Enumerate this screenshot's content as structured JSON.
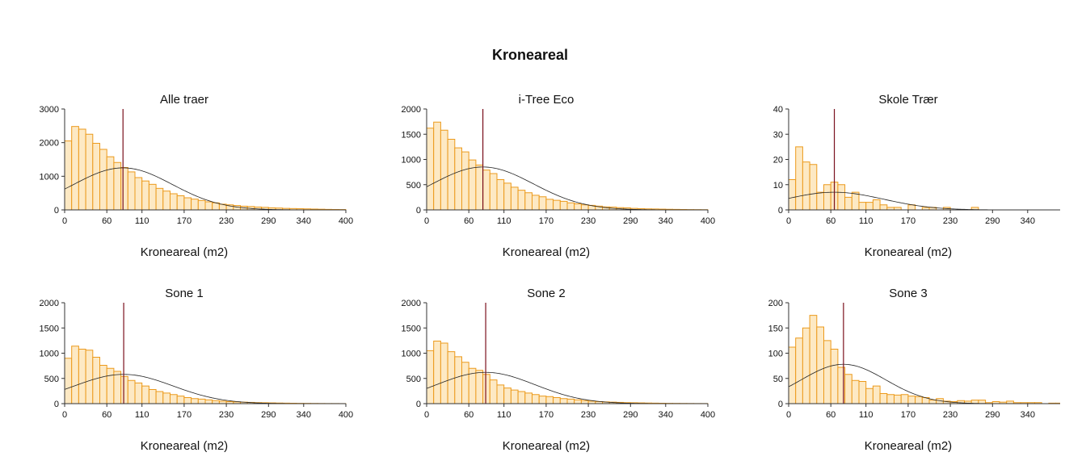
{
  "title": "Kroneareal",
  "chart_data": [
    {
      "type": "bar",
      "title": "Alle traer",
      "xlabel": "Kroneareal (m2)",
      "ylabel": "",
      "xlim": [
        0,
        400
      ],
      "ylim": [
        0,
        3000
      ],
      "xticks": [
        0,
        60,
        110,
        170,
        230,
        290,
        340,
        400
      ],
      "yticks": [
        0,
        1000,
        2000,
        3000
      ],
      "bin_width": 10,
      "values": [
        2050,
        2480,
        2400,
        2250,
        1980,
        1800,
        1580,
        1410,
        1260,
        1130,
        960,
        860,
        760,
        640,
        560,
        480,
        420,
        360,
        320,
        280,
        240,
        210,
        170,
        150,
        130,
        110,
        100,
        85,
        75,
        60,
        55,
        45,
        40,
        35,
        30,
        25,
        20,
        15,
        12,
        10
      ],
      "mean": 83,
      "density_curve": {
        "mean": 83,
        "sd": 70,
        "peak": 1250
      }
    },
    {
      "type": "bar",
      "title": "i-Tree Eco",
      "xlabel": "Kroneareal (m2)",
      "ylabel": "",
      "xlim": [
        0,
        400
      ],
      "ylim": [
        0,
        2000
      ],
      "xticks": [
        0,
        60,
        110,
        170,
        230,
        290,
        340,
        400
      ],
      "yticks": [
        0,
        500,
        1000,
        1500,
        2000
      ],
      "bin_width": 10,
      "values": [
        1620,
        1740,
        1580,
        1400,
        1230,
        1150,
        990,
        890,
        790,
        720,
        600,
        530,
        450,
        390,
        340,
        290,
        260,
        210,
        190,
        170,
        140,
        120,
        100,
        90,
        75,
        60,
        55,
        45,
        40,
        30,
        25,
        20,
        18,
        15,
        12,
        10,
        8,
        6,
        5,
        4
      ],
      "mean": 80,
      "density_curve": {
        "mean": 80,
        "sd": 72,
        "peak": 850
      }
    },
    {
      "type": "bar",
      "title": "Skole Trær",
      "xlabel": "Kroneareal (m2)",
      "ylabel": "",
      "xlim": [
        0,
        400
      ],
      "ylim": [
        0,
        40
      ],
      "xticks": [
        0,
        60,
        110,
        170,
        230,
        290,
        340,
        400
      ],
      "yticks": [
        0,
        10,
        20,
        30,
        40
      ],
      "bin_width": 10,
      "values": [
        12,
        25,
        19,
        18,
        7,
        10,
        11,
        10,
        5,
        7,
        3,
        3,
        4,
        2,
        1,
        1,
        0,
        2,
        0,
        1,
        1,
        0,
        1,
        0,
        0,
        0,
        1,
        0,
        0,
        0,
        0,
        0,
        0,
        0,
        0,
        0,
        0,
        0,
        0,
        0
      ],
      "mean": 65,
      "density_curve": {
        "mean": 65,
        "sd": 70,
        "peak": 7
      }
    },
    {
      "type": "bar",
      "title": "Sone 1",
      "xlabel": "Kroneareal (m2)",
      "ylabel": "",
      "xlim": [
        0,
        400
      ],
      "ylim": [
        0,
        2000
      ],
      "xticks": [
        0,
        60,
        110,
        170,
        230,
        290,
        340,
        400
      ],
      "yticks": [
        0,
        500,
        1000,
        1500,
        2000
      ],
      "bin_width": 10,
      "values": [
        900,
        1140,
        1080,
        1060,
        920,
        760,
        700,
        640,
        540,
        460,
        410,
        350,
        280,
        240,
        210,
        180,
        150,
        120,
        100,
        90,
        75,
        60,
        50,
        40,
        35,
        30,
        25,
        20,
        18,
        15,
        12,
        10,
        8,
        6,
        5,
        4,
        3,
        2,
        2,
        1
      ],
      "mean": 84,
      "density_curve": {
        "mean": 84,
        "sd": 70,
        "peak": 580
      }
    },
    {
      "type": "bar",
      "title": "Sone 2",
      "xlabel": "Kroneareal (m2)",
      "ylabel": "",
      "xlim": [
        0,
        400
      ],
      "ylim": [
        0,
        2000
      ],
      "xticks": [
        0,
        60,
        110,
        170,
        230,
        290,
        340,
        400
      ],
      "yticks": [
        0,
        500,
        1000,
        1500,
        2000
      ],
      "bin_width": 10,
      "values": [
        1050,
        1240,
        1200,
        1030,
        930,
        820,
        700,
        660,
        580,
        470,
        370,
        310,
        270,
        240,
        210,
        180,
        150,
        140,
        120,
        100,
        90,
        75,
        60,
        50,
        40,
        35,
        30,
        25,
        20,
        18,
        15,
        12,
        10,
        8,
        6,
        5,
        4,
        3,
        2,
        2
      ],
      "mean": 84,
      "density_curve": {
        "mean": 84,
        "sd": 70,
        "peak": 620
      }
    },
    {
      "type": "bar",
      "title": "Sone 3",
      "xlabel": "Kroneareal (m2)",
      "ylabel": "",
      "xlim": [
        0,
        400
      ],
      "ylim": [
        0,
        200
      ],
      "xticks": [
        0,
        60,
        110,
        170,
        230,
        290,
        340,
        400
      ],
      "yticks": [
        0,
        50,
        100,
        150,
        200
      ],
      "bin_width": 10,
      "values": [
        112,
        130,
        150,
        175,
        152,
        125,
        108,
        72,
        58,
        46,
        44,
        30,
        35,
        20,
        18,
        17,
        18,
        15,
        14,
        12,
        7,
        10,
        5,
        4,
        6,
        5,
        7,
        7,
        2,
        4,
        3,
        5,
        2,
        2,
        2,
        2,
        0,
        1,
        1,
        0
      ],
      "mean": 78,
      "density_curve": {
        "mean": 78,
        "sd": 60,
        "peak": 78
      }
    }
  ]
}
